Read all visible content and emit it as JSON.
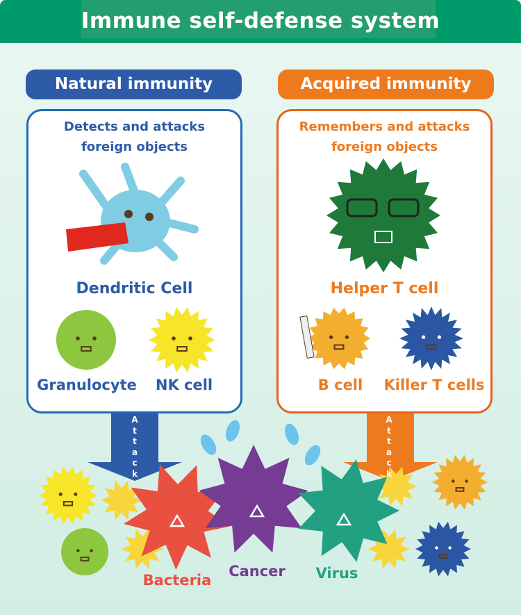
{
  "title": "Immune self-defense system",
  "natural": {
    "label": "Natural immunity",
    "desc_line1": "Detects and attacks",
    "desc_line2": "foreign objects",
    "main_cell": "Dendritic Cell",
    "cells": [
      "Granulocyte",
      "NK cell"
    ]
  },
  "acquired": {
    "label": "Acquired immunity",
    "desc_line1": "Remembers and attacks",
    "desc_line2": "foreign objects",
    "main_cell": "Helper T cell",
    "cells": [
      "B cell",
      "Killer T cells"
    ]
  },
  "arrow_label": "Attack",
  "targets": [
    "Bacteria",
    "Cancer",
    "Virus"
  ],
  "colors": {
    "header": "#009a6b",
    "natural": "#2d5ba8",
    "acquired": "#ee7a1e",
    "bacteria": "#e8503f",
    "cancer": "#763b93",
    "virus": "#22a182",
    "dendritic": "#7fcce3",
    "helper": "#1f7a3a",
    "granulocyte": "#8dc63f",
    "nk": "#f7e52a",
    "bcell": "#f3ae2f",
    "killer": "#2a56a4"
  }
}
